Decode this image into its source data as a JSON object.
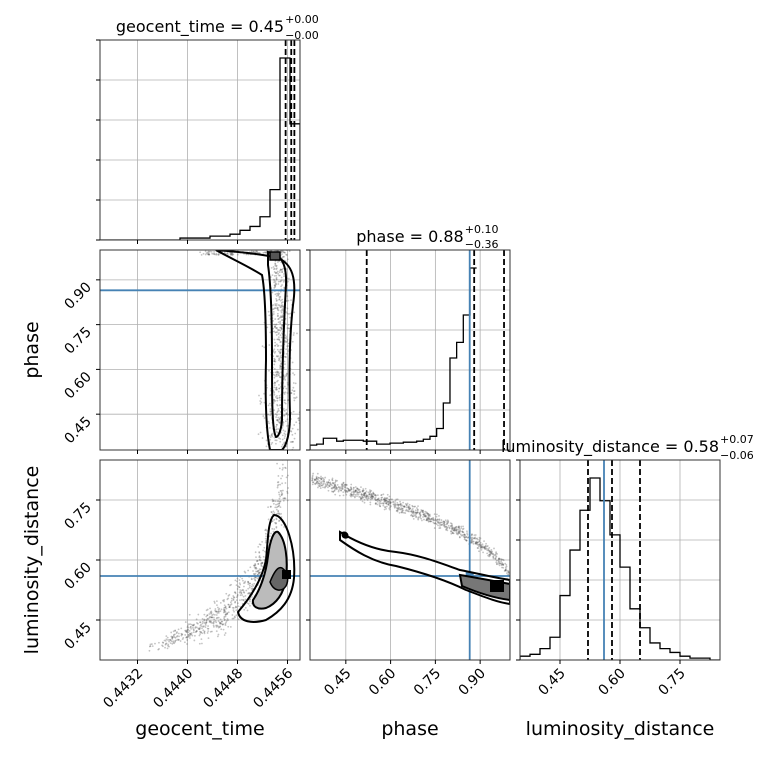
{
  "chart_data": {
    "type": "corner",
    "colors": {
      "truth": "#4682b4",
      "hist": "#000000",
      "grid": "#b0b0b0",
      "sample": "#555555"
    },
    "grid": true,
    "parameters": [
      {
        "name": "geocent_time",
        "label": "geocent_time",
        "title": "geocent_time = 0.45",
        "sup": "+0.00",
        "sub": "−0.00",
        "range": [
          0.4426,
          0.4458
        ],
        "ticks": [
          0.4432,
          0.444,
          0.4448,
          0.4456
        ],
        "tick_labels": [
          "0.4432",
          "0.4440",
          "0.4448",
          "0.4456"
        ],
        "quantiles": [
          0.44557,
          0.44566,
          0.44571
        ],
        "truth": null
      },
      {
        "name": "phase",
        "label": "phase",
        "title": "phase = 0.88",
        "sup": "+0.10",
        "sub": "−0.36",
        "range": [
          0.33,
          1.0
        ],
        "ticks": [
          0.45,
          0.6,
          0.75,
          0.9
        ],
        "tick_labels": [
          "0.45",
          "0.60",
          "0.75",
          "0.90"
        ],
        "quantiles": [
          0.52,
          0.88,
          0.98
        ],
        "truth": 0.865
      },
      {
        "name": "luminosity_distance",
        "label": "luminosity_distance",
        "title": "luminosity_distance = 0.58",
        "sup": "+0.07",
        "sub": "−0.06",
        "range": [
          0.35,
          0.85
        ],
        "ticks": [
          0.45,
          0.6,
          0.75
        ],
        "tick_labels": [
          "0.45",
          "0.60",
          "0.75"
        ],
        "quantiles": [
          0.52,
          0.58,
          0.65
        ],
        "truth": 0.56
      }
    ],
    "histograms": [
      {
        "param": "geocent_time",
        "edges_start": 0.4426,
        "bin_width": 0.00016,
        "counts": [
          0,
          0,
          0,
          0,
          0,
          0,
          0,
          0,
          0.01,
          0.01,
          0.01,
          0.02,
          0.02,
          0.03,
          0.05,
          0.07,
          0.12,
          0.26,
          0.94,
          0.6,
          0.0
        ]
      },
      {
        "param": "phase",
        "edges_start": 0.33,
        "bin_width": 0.02233,
        "counts": [
          0.025,
          0.03,
          0.06,
          0.06,
          0.045,
          0.05,
          0.05,
          0.05,
          0.045,
          0.045,
          0.03,
          0.03,
          0.035,
          0.035,
          0.04,
          0.04,
          0.045,
          0.055,
          0.07,
          0.11,
          0.24,
          0.47,
          0.55,
          0.69,
          0.93
        ]
      },
      {
        "param": "luminosity_distance",
        "edges_start": 0.35,
        "bin_width": 0.025,
        "counts": [
          0.02,
          0.03,
          0.06,
          0.12,
          0.34,
          0.58,
          0.79,
          0.96,
          0.84,
          0.66,
          0.49,
          0.27,
          0.17,
          0.09,
          0.06,
          0.04,
          0.02,
          0.01,
          0.01,
          0.0
        ]
      }
    ],
    "panels_2d": [
      {
        "x": "geocent_time",
        "y": "phase",
        "truth_x": null,
        "truth_y": 0.865
      },
      {
        "x": "geocent_time",
        "y": "luminosity_distance",
        "truth_x": null,
        "truth_y": 0.56
      },
      {
        "x": "phase",
        "y": "luminosity_distance",
        "truth_x": 0.865,
        "truth_y": 0.56
      }
    ]
  }
}
